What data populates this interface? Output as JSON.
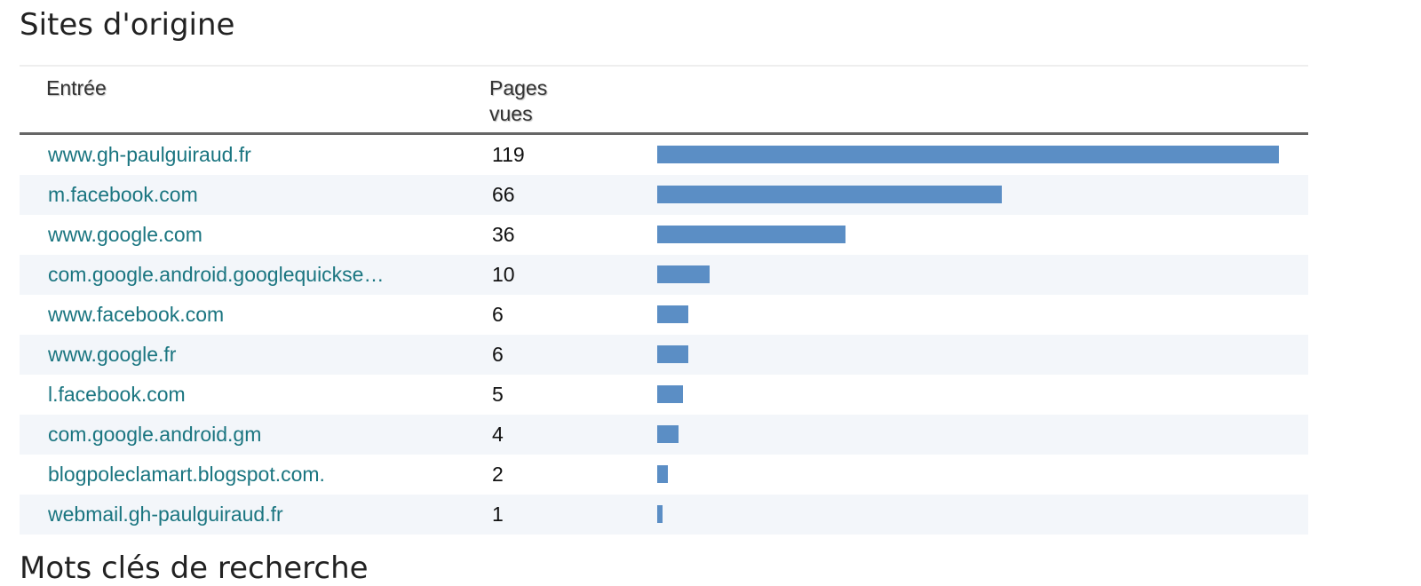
{
  "header": {
    "title": "Sites d'origine"
  },
  "table": {
    "columns": [
      "Entrée",
      "Pages vues"
    ],
    "rows": [
      [
        "www.gh-paulguiraud.fr",
        119
      ],
      [
        "m.facebook.com",
        66
      ],
      [
        "www.google.com",
        36
      ],
      [
        "com.google.android.googlequickse…",
        10
      ],
      [
        "www.facebook.com",
        6
      ],
      [
        "www.google.fr",
        6
      ],
      [
        "l.facebook.com",
        5
      ],
      [
        "com.google.android.gm",
        4
      ],
      [
        "blogpoleclamart.blogspot.com.",
        2
      ],
      [
        "webmail.gh-paulguiraud.fr",
        1
      ]
    ]
  },
  "next_section": {
    "title": "Mots clés de recherche"
  }
}
